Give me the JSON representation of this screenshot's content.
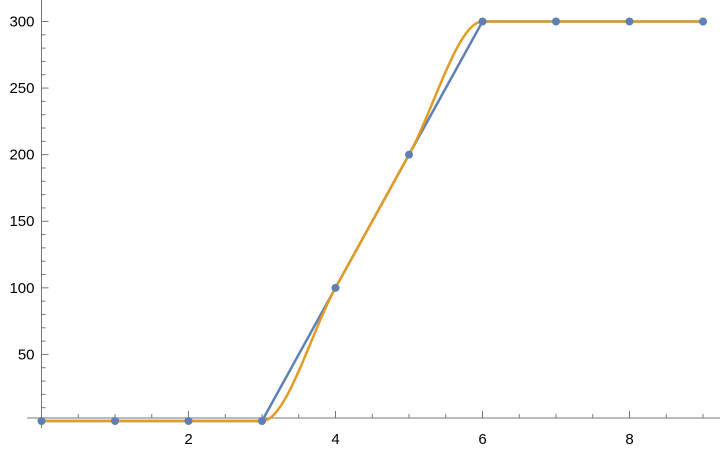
{
  "chart_data": {
    "type": "line",
    "title": "",
    "xlabel": "",
    "ylabel": "",
    "xlim": [
      0,
      9
    ],
    "ylim": [
      0,
      300
    ],
    "grid": false,
    "x_ticks": [
      2,
      4,
      6,
      8
    ],
    "y_ticks": [
      50,
      100,
      150,
      200,
      250,
      300
    ],
    "x": [
      0,
      1,
      2,
      3,
      4,
      5,
      6,
      7,
      8,
      9
    ],
    "series": [
      {
        "style": "line-with-points",
        "color": "#5e81b5",
        "values": [
          0,
          0,
          0,
          0,
          100,
          200,
          300,
          300,
          300,
          300
        ]
      },
      {
        "style": "smooth-interpolation",
        "color": "#e19c24",
        "values": [
          0,
          0,
          0,
          0,
          100,
          200,
          300,
          300,
          300,
          300
        ]
      }
    ]
  }
}
